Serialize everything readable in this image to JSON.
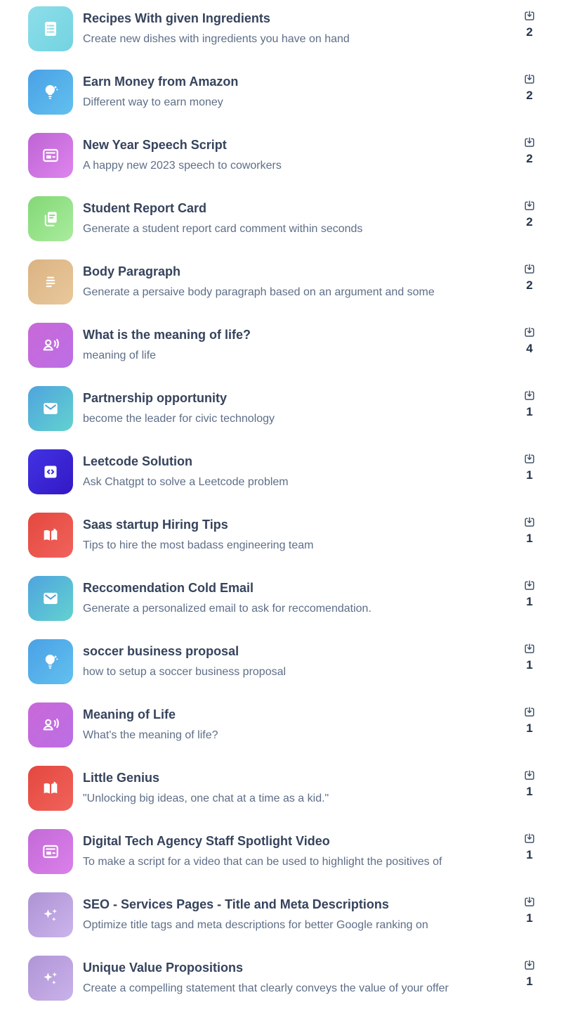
{
  "page": {
    "background": "#ffffff",
    "title_color": "#36435c",
    "subtitle_color": "#5e6e87",
    "count_color": "#273449",
    "download_icon_color": "#45556c"
  },
  "list": {
    "items": [
      {
        "title": "Recipes With given Ingredients",
        "subtitle": "Create new dishes with ingredients you have on hand",
        "downloads": "2",
        "icon": "clipboard-list",
        "gradient": [
          "#8cdee9",
          "#74d3e1"
        ]
      },
      {
        "title": "Earn Money from Amazon",
        "subtitle": "Different way to earn money",
        "downloads": "2",
        "icon": "lightbulb",
        "gradient": [
          "#4aa1e6",
          "#62c0ee"
        ]
      },
      {
        "title": "New Year Speech Script",
        "subtitle": "A happy new 2023 speech to coworkers",
        "downloads": "2",
        "icon": "newspaper",
        "gradient": [
          "#bf63d4",
          "#dd85ee"
        ]
      },
      {
        "title": "Student Report Card",
        "subtitle": "Generate a student report card comment within seconds",
        "downloads": "2",
        "icon": "document-duplicate",
        "gradient": [
          "#83d876",
          "#a9ec9e"
        ]
      },
      {
        "title": "Body Paragraph",
        "subtitle": "Generate a persaive body paragraph based on an argument and some",
        "downloads": "2",
        "icon": "paragraph-lines",
        "gradient": [
          "#dbb382",
          "#e8c89c"
        ]
      },
      {
        "title": "What is the meaning of life?",
        "subtitle": "meaning of life",
        "downloads": "4",
        "icon": "person-voice",
        "gradient": [
          "#c968d9",
          "#bb6fe4"
        ]
      },
      {
        "title": "Partnership opportunity",
        "subtitle": "become the leader for civic technology",
        "downloads": "1",
        "icon": "envelope",
        "gradient": [
          "#4fa4de",
          "#62d2cf"
        ]
      },
      {
        "title": "Leetcode Solution",
        "subtitle": "Ask Chatgpt to solve a Leetcode problem",
        "downloads": "1",
        "icon": "code",
        "gradient": [
          "#4233e4",
          "#3318c4"
        ]
      },
      {
        "title": "Saas startup Hiring Tips",
        "subtitle": "Tips to hire the most badass engineering team",
        "downloads": "1",
        "icon": "open-book",
        "gradient": [
          "#e4483f",
          "#f0635b"
        ]
      },
      {
        "title": "Reccomendation Cold Email",
        "subtitle": "Generate a personalized email to ask for reccomendation.",
        "downloads": "1",
        "icon": "envelope",
        "gradient": [
          "#4fa4de",
          "#62d2cf"
        ]
      },
      {
        "title": "soccer business proposal",
        "subtitle": "how to setup a soccer business proposal",
        "downloads": "1",
        "icon": "lightbulb",
        "gradient": [
          "#4aa1e6",
          "#62c0ee"
        ]
      },
      {
        "title": "Meaning of Life",
        "subtitle": "What's the meaning of life?",
        "downloads": "1",
        "icon": "person-voice",
        "gradient": [
          "#c968d9",
          "#bb6fe4"
        ]
      },
      {
        "title": "Little Genius",
        "subtitle": "\"Unlocking big ideas, one chat at a time as a kid.\"",
        "downloads": "1",
        "icon": "open-book",
        "gradient": [
          "#e4483f",
          "#f0635b"
        ]
      },
      {
        "title": "Digital Tech Agency Staff Spotlight Video",
        "subtitle": "To make a script for a video that can be used to highlight the positives of",
        "downloads": "1",
        "icon": "newspaper",
        "gradient": [
          "#c46ad8",
          "#da80ea"
        ]
      },
      {
        "title": "SEO - Services Pages - Title and Meta Descriptions",
        "subtitle": "Optimize title tags and meta descriptions for better Google ranking on",
        "downloads": "1",
        "icon": "sparkles",
        "gradient": [
          "#ae92d4",
          "#cbb5ec"
        ]
      },
      {
        "title": "Unique Value Propositions",
        "subtitle": "Create a compelling statement that clearly conveys the value of your offer",
        "downloads": "1",
        "icon": "sparkles",
        "gradient": [
          "#b095d6",
          "#c9b2ea"
        ]
      }
    ]
  }
}
